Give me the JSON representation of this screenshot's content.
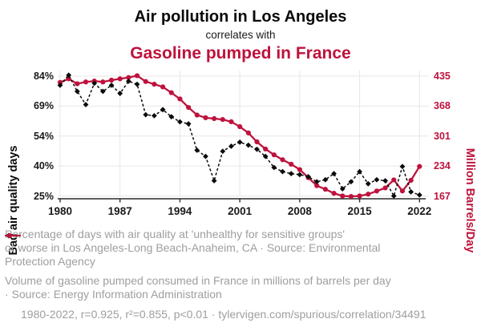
{
  "title": {
    "line1": "Air pollution in Los Angeles",
    "line2": "correlates with",
    "line3": "Gasoline pumped in France"
  },
  "colors": {
    "accent_red": "#be123c",
    "series_black": "#0a0a0a",
    "gridline": "#e7e7e7",
    "legend_gray": "#9e9e9e"
  },
  "chart_data": {
    "type": "line",
    "x_range": [
      1980,
      2022
    ],
    "x_ticks": [
      1980,
      1987,
      1994,
      2001,
      2008,
      2015,
      2022
    ],
    "x": [
      1980,
      1981,
      1982,
      1983,
      1984,
      1985,
      1986,
      1987,
      1988,
      1989,
      1990,
      1991,
      1992,
      1993,
      1994,
      1995,
      1996,
      1997,
      1998,
      1999,
      2000,
      2001,
      2002,
      2003,
      2004,
      2005,
      2006,
      2007,
      2008,
      2009,
      2010,
      2011,
      2012,
      2013,
      2014,
      2015,
      2016,
      2017,
      2018,
      2019,
      2020,
      2021,
      2022
    ],
    "left_axis": {
      "label": "Bad air quality days",
      "ticks": [
        "84%",
        "69%",
        "54%",
        "40%",
        "25%"
      ],
      "tick_values": [
        84,
        69,
        54,
        40,
        25
      ]
    },
    "right_axis": {
      "label": "Million Barrels/Day",
      "ticks": [
        "435",
        "368",
        "301",
        "234",
        "167"
      ],
      "tick_values": [
        435,
        368,
        301,
        234,
        167
      ]
    },
    "series": [
      {
        "name": "gasoline-pumped-france",
        "axis": "right",
        "style": "solid-circle",
        "values": [
          421,
          429,
          418,
          422,
          424,
          422,
          426,
          429,
          432,
          436,
          423,
          417,
          411,
          398,
          384,
          365,
          348,
          342,
          340,
          338,
          333,
          322,
          308,
          288,
          272,
          259,
          248,
          238,
          226,
          208,
          190,
          182,
          173,
          167,
          166,
          167,
          171,
          178,
          185,
          203,
          178,
          202,
          233
        ]
      },
      {
        "name": "bad-air-quality-days-la",
        "axis": "left",
        "style": "dashed-diamond",
        "values": [
          79.5,
          84.5,
          76.5,
          70,
          80.5,
          76.5,
          79.5,
          75.5,
          81.5,
          80,
          65,
          64.5,
          67.5,
          64,
          61.5,
          60.5,
          47.5,
          44.5,
          32.5,
          47,
          49.5,
          51.5,
          50,
          48,
          44.5,
          39,
          37,
          36,
          35.5,
          34.5,
          32,
          33,
          36,
          28.5,
          32,
          37,
          31,
          33,
          32.5,
          25,
          39.5,
          27,
          25.5
        ]
      }
    ]
  },
  "legend": [
    {
      "marker": "black-dashed-diamond",
      "lines": [
        "Percentage of days with air quality at 'unhealthy for sensitive groups'",
        "or worse in Los Angeles-Long Beach-Anaheim, CA · Source: Environmental",
        "Protection Agency"
      ]
    },
    {
      "marker": "red-line-circle",
      "lines": [
        "Volume of gasoline pumped consumed in France in millions of barrels per day",
        "· Source: Energy Information Administration"
      ]
    }
  ],
  "footer": {
    "text": "1980-2022, r=0.925, r²=0.855, p<0.01 · tylervigen.com/spurious/correlation/34491"
  }
}
